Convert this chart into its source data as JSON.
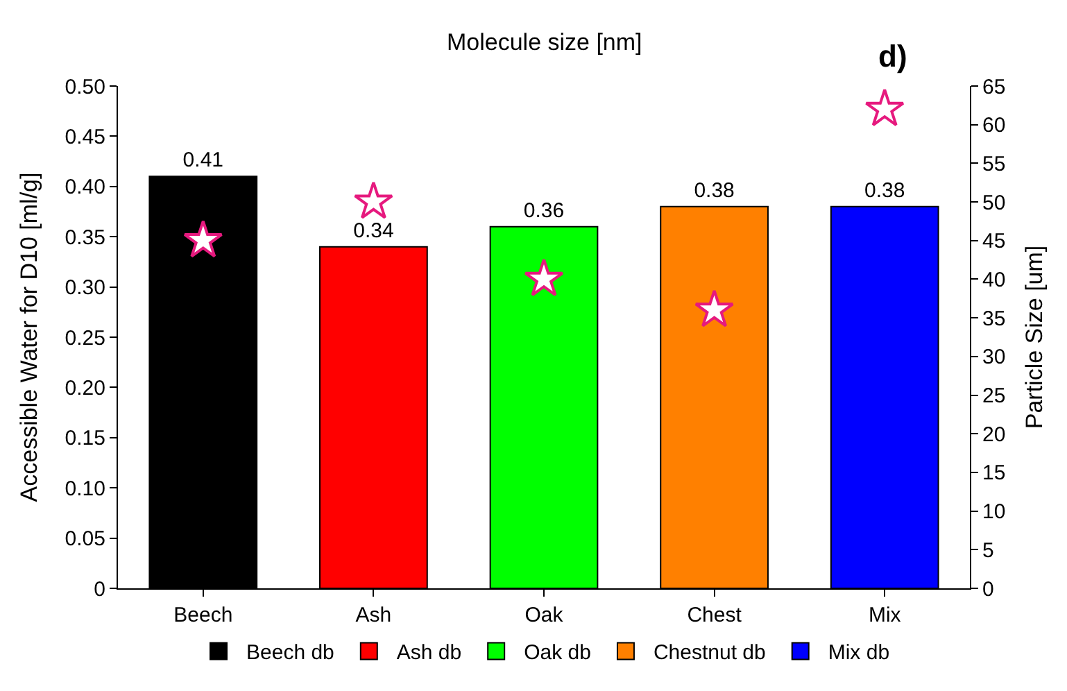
{
  "chart_data": {
    "type": "bar",
    "categories": [
      "Beech",
      "Ash",
      "Oak",
      "Chest",
      "Mix"
    ],
    "ylabel": "Accessible Water for D10 [ml/g]",
    "y2label": "Particle Size [um]",
    "ylim": [
      0,
      0.5
    ],
    "yticks": [
      0,
      {
        "value": 0.05,
        "label": "0.05"
      },
      {
        "value": 0.1,
        "label": "0.10"
      },
      {
        "value": 0.15,
        "label": "0.15"
      },
      {
        "value": 0.2,
        "label": "0.20"
      },
      {
        "value": 0.25,
        "label": "0.25"
      },
      {
        "value": 0.3,
        "label": "0.30"
      },
      {
        "value": 0.35,
        "label": "0.35"
      },
      {
        "value": 0.4,
        "label": "0.40"
      },
      {
        "value": 0.45,
        "label": "0.45"
      },
      {
        "value": 0.5,
        "label": "0.50"
      }
    ],
    "y2lim": [
      0,
      65
    ],
    "y2ticks": [
      0,
      5,
      10,
      15,
      20,
      25,
      30,
      35,
      40,
      45,
      50,
      55,
      60,
      65
    ],
    "series": [
      {
        "name": "Beech db",
        "color": "#000000",
        "values": [
          0.41,
          null,
          null,
          null,
          null
        ],
        "value_labels": [
          "0.41",
          null,
          null,
          null,
          null
        ]
      },
      {
        "name": "Ash db",
        "color": "#ff0000",
        "values": [
          null,
          0.34,
          null,
          null,
          null
        ],
        "value_labels": [
          null,
          "0.34",
          null,
          null,
          null
        ]
      },
      {
        "name": "Oak db",
        "color": "#00ff00",
        "values": [
          null,
          null,
          0.36,
          null,
          null
        ],
        "value_labels": [
          null,
          null,
          "0.36",
          null,
          null
        ]
      },
      {
        "name": "Chestnut db",
        "color": "#ff8000",
        "values": [
          null,
          null,
          null,
          0.38,
          null
        ],
        "value_labels": [
          null,
          null,
          null,
          "0.38",
          null
        ]
      },
      {
        "name": "Mix db",
        "color": "#0000ff",
        "values": [
          null,
          null,
          null,
          null,
          0.38
        ],
        "value_labels": [
          null,
          null,
          null,
          null,
          "0.38"
        ]
      },
      {
        "type": "scatter",
        "axis": "y2",
        "marker": "star",
        "color": "#e6197e",
        "values": [
          45,
          50,
          40,
          36,
          62
        ]
      }
    ],
    "grid": false,
    "legend": "bottom",
    "annotations": [
      "Molecule size [nm]",
      "d)"
    ]
  }
}
